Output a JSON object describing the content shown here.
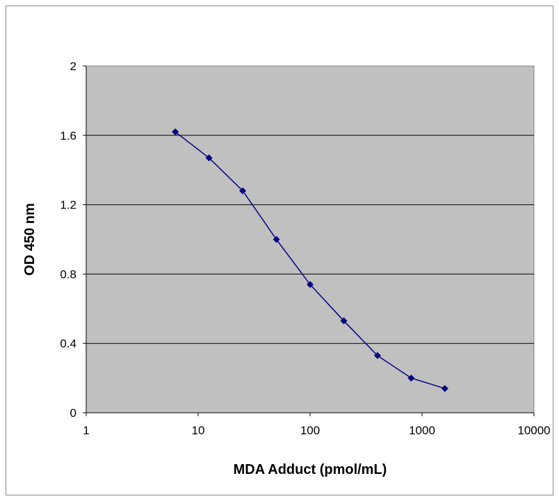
{
  "chart_data": {
    "type": "line",
    "title": "",
    "xlabel": "MDA Adduct (pmol/mL)",
    "ylabel": "OD 450 nm",
    "xscale": "log",
    "xlim": [
      1,
      10000
    ],
    "ylim": [
      0,
      2
    ],
    "xticks": [
      "1",
      "10",
      "100",
      "1000",
      "10000"
    ],
    "yticks": [
      "0",
      "0.4",
      "0.8",
      "1.2",
      "1.6",
      "2"
    ],
    "grid": "horizontal",
    "legend": "none",
    "plot_background": "#c0c0c0",
    "series": [
      {
        "color": "#000080",
        "marker": "diamond",
        "x": [
          6.25,
          12.5,
          25,
          50,
          100,
          200,
          400,
          800,
          1600
        ],
        "y": [
          1.62,
          1.47,
          1.28,
          1.0,
          0.74,
          0.53,
          0.33,
          0.2,
          0.14
        ]
      }
    ]
  }
}
